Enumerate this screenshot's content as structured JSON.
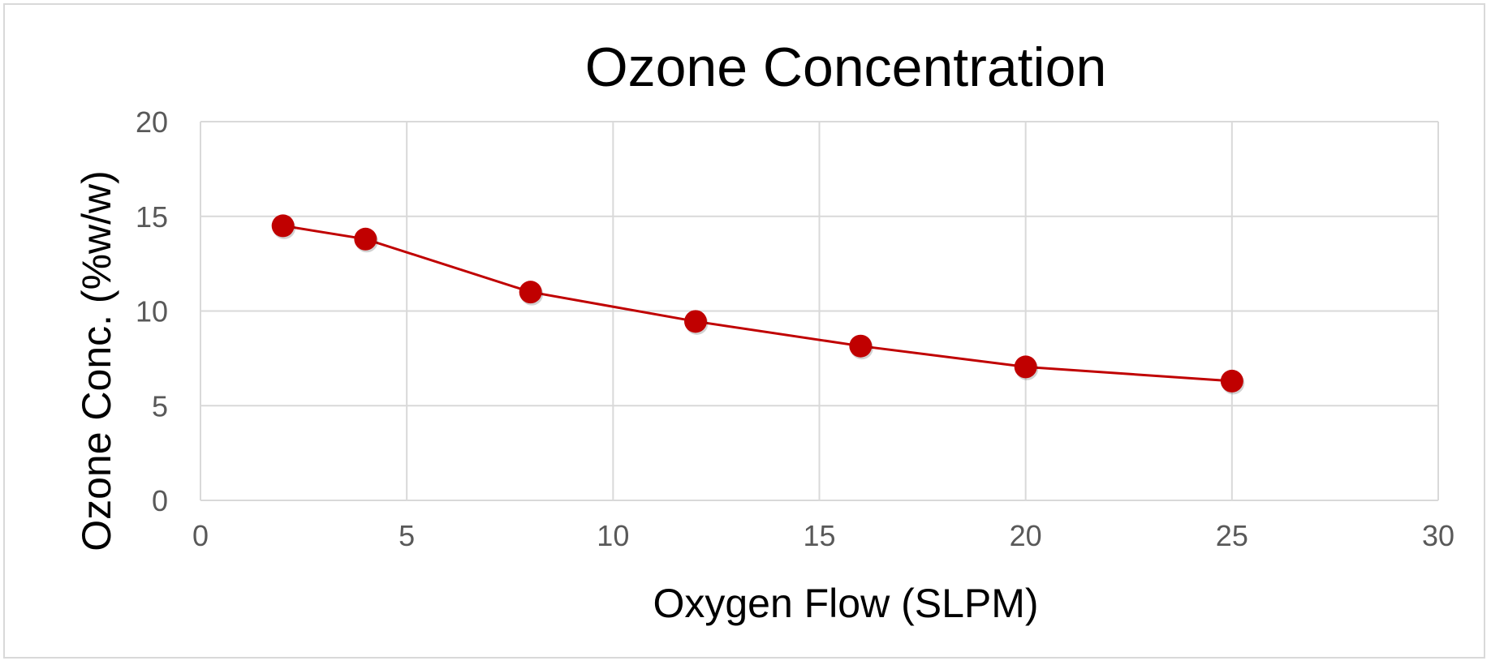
{
  "chart_data": {
    "type": "line",
    "title": "Ozone Concentration",
    "xlabel": "Oxygen Flow (SLPM)",
    "ylabel": "Ozone Conc. (%w/w)",
    "xlim": [
      0,
      30
    ],
    "ylim": [
      0,
      20
    ],
    "x_ticks": [
      "0",
      "5",
      "10",
      "15",
      "20",
      "25",
      "30"
    ],
    "y_ticks": [
      "0",
      "5",
      "10",
      "15",
      "20"
    ],
    "grid": true,
    "legend": "none",
    "series": [
      {
        "color": "#c00000",
        "marker": "circle",
        "x": [
          2,
          4,
          8,
          12,
          16,
          20,
          25
        ],
        "y": [
          14.5,
          13.8,
          11.0,
          9.45,
          8.15,
          7.05,
          6.3
        ]
      }
    ]
  }
}
